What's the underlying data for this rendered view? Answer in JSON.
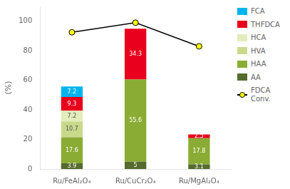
{
  "chart_data": {
    "type": "bar",
    "stacked": true,
    "categories": [
      "Ru/FeAl₂O₄",
      "Ru/CuCr₂O₄",
      "Ru/MgAl₂O₄"
    ],
    "ylabel": "(%)",
    "ylim": [
      0,
      110
    ],
    "yticks": [
      0,
      20,
      40,
      60,
      80,
      100
    ],
    "grid": false,
    "legend": "right",
    "series": [
      {
        "name": "AA",
        "color": "#556b2f",
        "values": [
          3.9,
          5.0,
          3.1
        ],
        "data_labels": true
      },
      {
        "name": "HAA",
        "color": "#8aac34",
        "values": [
          17.6,
          55.6,
          17.8
        ],
        "data_labels": true
      },
      {
        "name": "HVA",
        "color": "#c8d98c",
        "values": [
          10.7,
          0.0,
          0.0
        ],
        "data_labels": true
      },
      {
        "name": "HCA",
        "color": "#e2edbb",
        "values": [
          7.2,
          0.0,
          0.0
        ],
        "data_labels": true
      },
      {
        "name": "THFDCA",
        "color": "#e8001c",
        "values": [
          9.3,
          34.3,
          2.5
        ],
        "data_labels": true
      },
      {
        "name": "FCA",
        "color": "#00b4ef",
        "values": [
          7.2,
          0.0,
          0.0
        ],
        "data_labels": true
      },
      {
        "name": "FDCA\nConv.",
        "type": "line",
        "color": "#000000",
        "colors": [
          "#ffff00",
          "#ffff00",
          "#ffff00"
        ],
        "marker": "circle",
        "values": [
          92.5,
          99.0,
          83.0
        ]
      }
    ]
  }
}
